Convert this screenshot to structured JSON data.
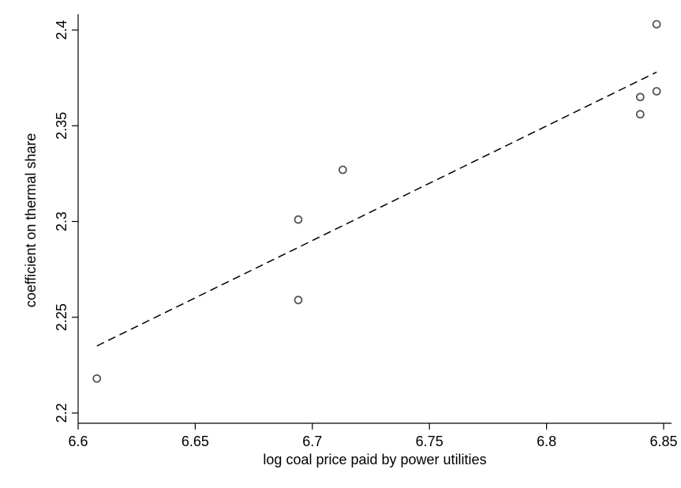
{
  "chart_data": {
    "type": "scatter",
    "title": "",
    "xlabel": "log coal price paid by power utilities",
    "ylabel": "coefficient on thermal share",
    "xlim": [
      6.6,
      6.85
    ],
    "ylim": [
      2.2,
      2.4
    ],
    "x_ticks": [
      6.6,
      6.65,
      6.7,
      6.75,
      6.8,
      6.85
    ],
    "x_tick_labels": [
      "6.6",
      "6.65",
      "6.7",
      "6.75",
      "6.8",
      "6.85"
    ],
    "y_ticks": [
      2.2,
      2.25,
      2.3,
      2.35,
      2.4
    ],
    "y_tick_labels": [
      "2.2",
      "2.25",
      "2.3",
      "2.35",
      "2.4"
    ],
    "grid": false,
    "series": [
      {
        "type": "scatter",
        "marker": "hollow-circle",
        "color": "#555555",
        "x": [
          6.608,
          6.694,
          6.694,
          6.713,
          6.84,
          6.84,
          6.847,
          6.847
        ],
        "y": [
          2.218,
          2.259,
          2.301,
          2.327,
          2.356,
          2.365,
          2.368,
          2.403
        ]
      },
      {
        "type": "line",
        "style": "dashed",
        "color": "#000000",
        "x": [
          6.608,
          6.847
        ],
        "y": [
          2.235,
          2.378
        ]
      }
    ]
  }
}
